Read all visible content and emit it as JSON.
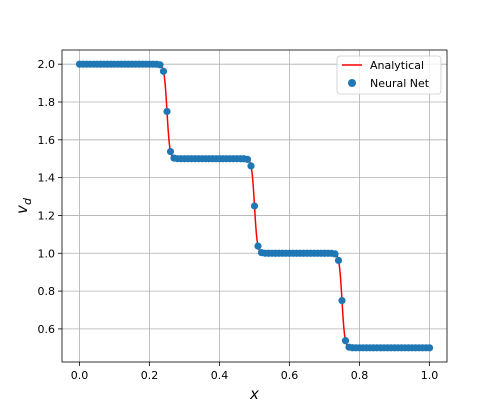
{
  "chart_data": {
    "type": "line",
    "xlabel": "x",
    "ylabel_main": "v",
    "ylabel_sub": "d",
    "xlim": [
      -0.05,
      1.05
    ],
    "ylim": [
      0.425,
      2.075
    ],
    "xticks": [
      0.0,
      0.2,
      0.4,
      0.6,
      0.8,
      1.0
    ],
    "xtick_labels": [
      "0.0",
      "0.2",
      "0.4",
      "0.6",
      "0.8",
      "1.0"
    ],
    "yticks": [
      0.6,
      0.8,
      1.0,
      1.2,
      1.4,
      1.6,
      1.8,
      2.0
    ],
    "ytick_labels": [
      "0.6",
      "0.8",
      "1.0",
      "1.2",
      "1.4",
      "1.6",
      "1.8",
      "2.0"
    ],
    "grid": true,
    "legend_placement": "top-right",
    "step_model": {
      "base": 0.5,
      "steps": [
        {
          "center": 0.25,
          "height": 0.5
        },
        {
          "center": 0.5,
          "height": 0.5
        },
        {
          "center": 0.75,
          "height": 0.5
        }
      ],
      "width": 0.008
    },
    "series": [
      {
        "name": "Analytical",
        "kind": "line",
        "color": "#ff0000"
      },
      {
        "name": "Neural Net",
        "kind": "scatter",
        "color": "#1f77b4",
        "n_points": 101,
        "x_range": [
          0.0,
          1.0
        ]
      }
    ]
  }
}
